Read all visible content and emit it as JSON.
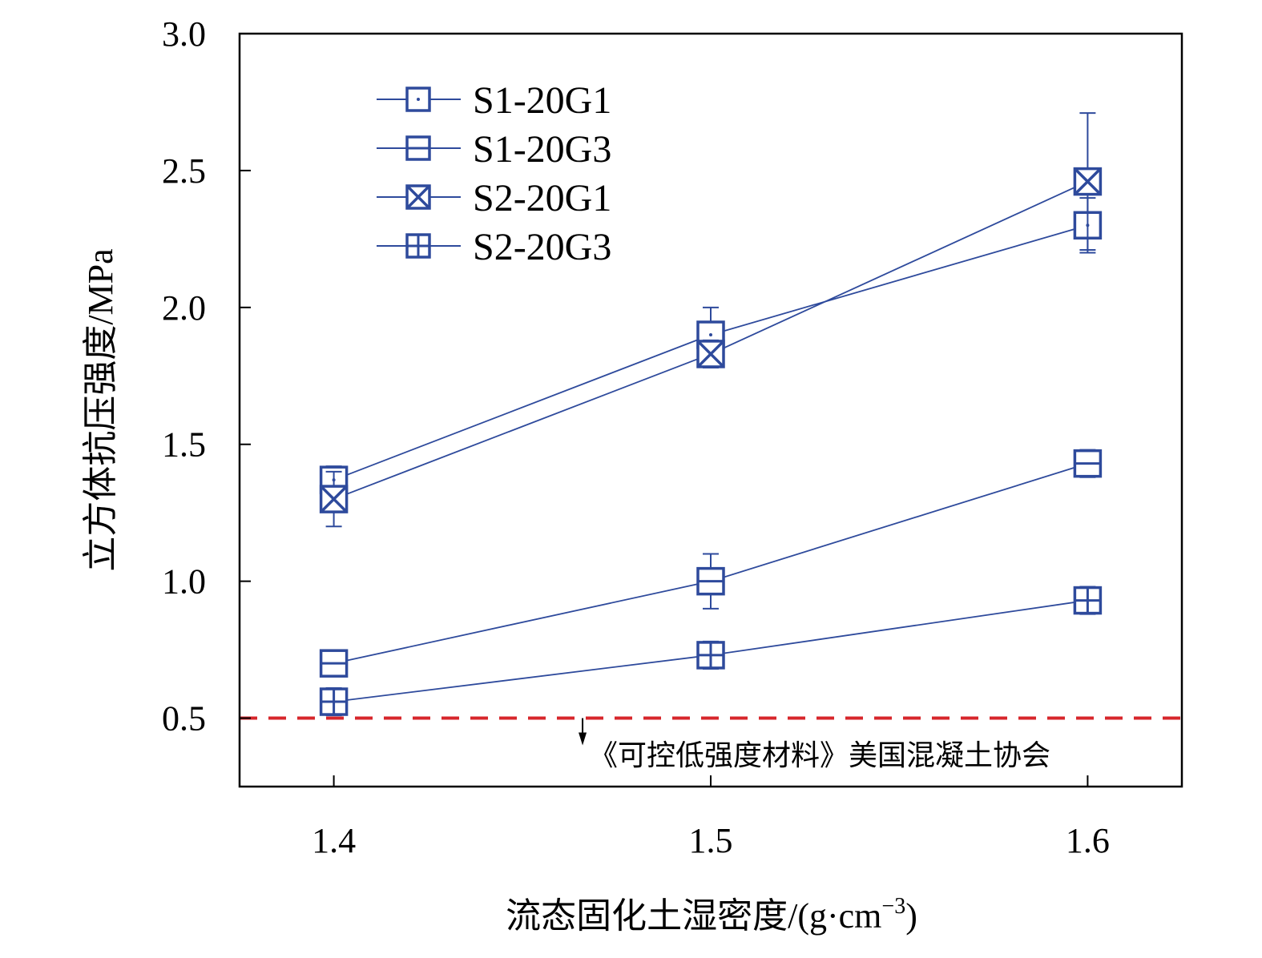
{
  "chart_data": {
    "type": "line",
    "title": "",
    "xlabel": "流态固化土湿密度/(g·cm",
    "xlabel_sup": "−3",
    "xlabel_end": ")",
    "ylabel": "立方体抗压强度/MPa",
    "xlim": [
      1.375,
      1.625
    ],
    "ylim": [
      0.25,
      3.0
    ],
    "x": [
      1.4,
      1.5,
      1.6
    ],
    "x_tick_labels": [
      "1.4",
      "1.5",
      "1.6"
    ],
    "y_ticks": [
      0.5,
      1.0,
      1.5,
      2.0,
      2.5,
      3.0
    ],
    "y_tick_labels": [
      "0.5",
      "1.0",
      "1.5",
      "2.0",
      "2.5",
      "3.0"
    ],
    "grid": false,
    "legend_position": "top-left",
    "series": [
      {
        "name": "S1-20G1",
        "marker": "square-dot",
        "values": [
          1.37,
          1.9,
          2.3
        ],
        "errors": [
          0.05,
          0.1,
          0.1
        ]
      },
      {
        "name": "S1-20G3",
        "marker": "square-hline",
        "values": [
          0.7,
          1.0,
          1.43
        ],
        "errors": [
          0.02,
          0.1,
          0.05
        ]
      },
      {
        "name": "S2-20G1",
        "marker": "square-x",
        "values": [
          1.3,
          1.83,
          2.46
        ],
        "errors": [
          0.1,
          0.05,
          0.25
        ]
      },
      {
        "name": "S2-20G3",
        "marker": "square-plus",
        "values": [
          0.56,
          0.73,
          0.93
        ],
        "errors": [
          0.05,
          0.05,
          0.05
        ]
      }
    ],
    "reference_line": {
      "y": 0.5,
      "color": "#d7262b",
      "label": "《可控低强度材料》美国混凝土协会",
      "arrow_x": 1.466
    },
    "series_color": "#2e4a9c"
  }
}
